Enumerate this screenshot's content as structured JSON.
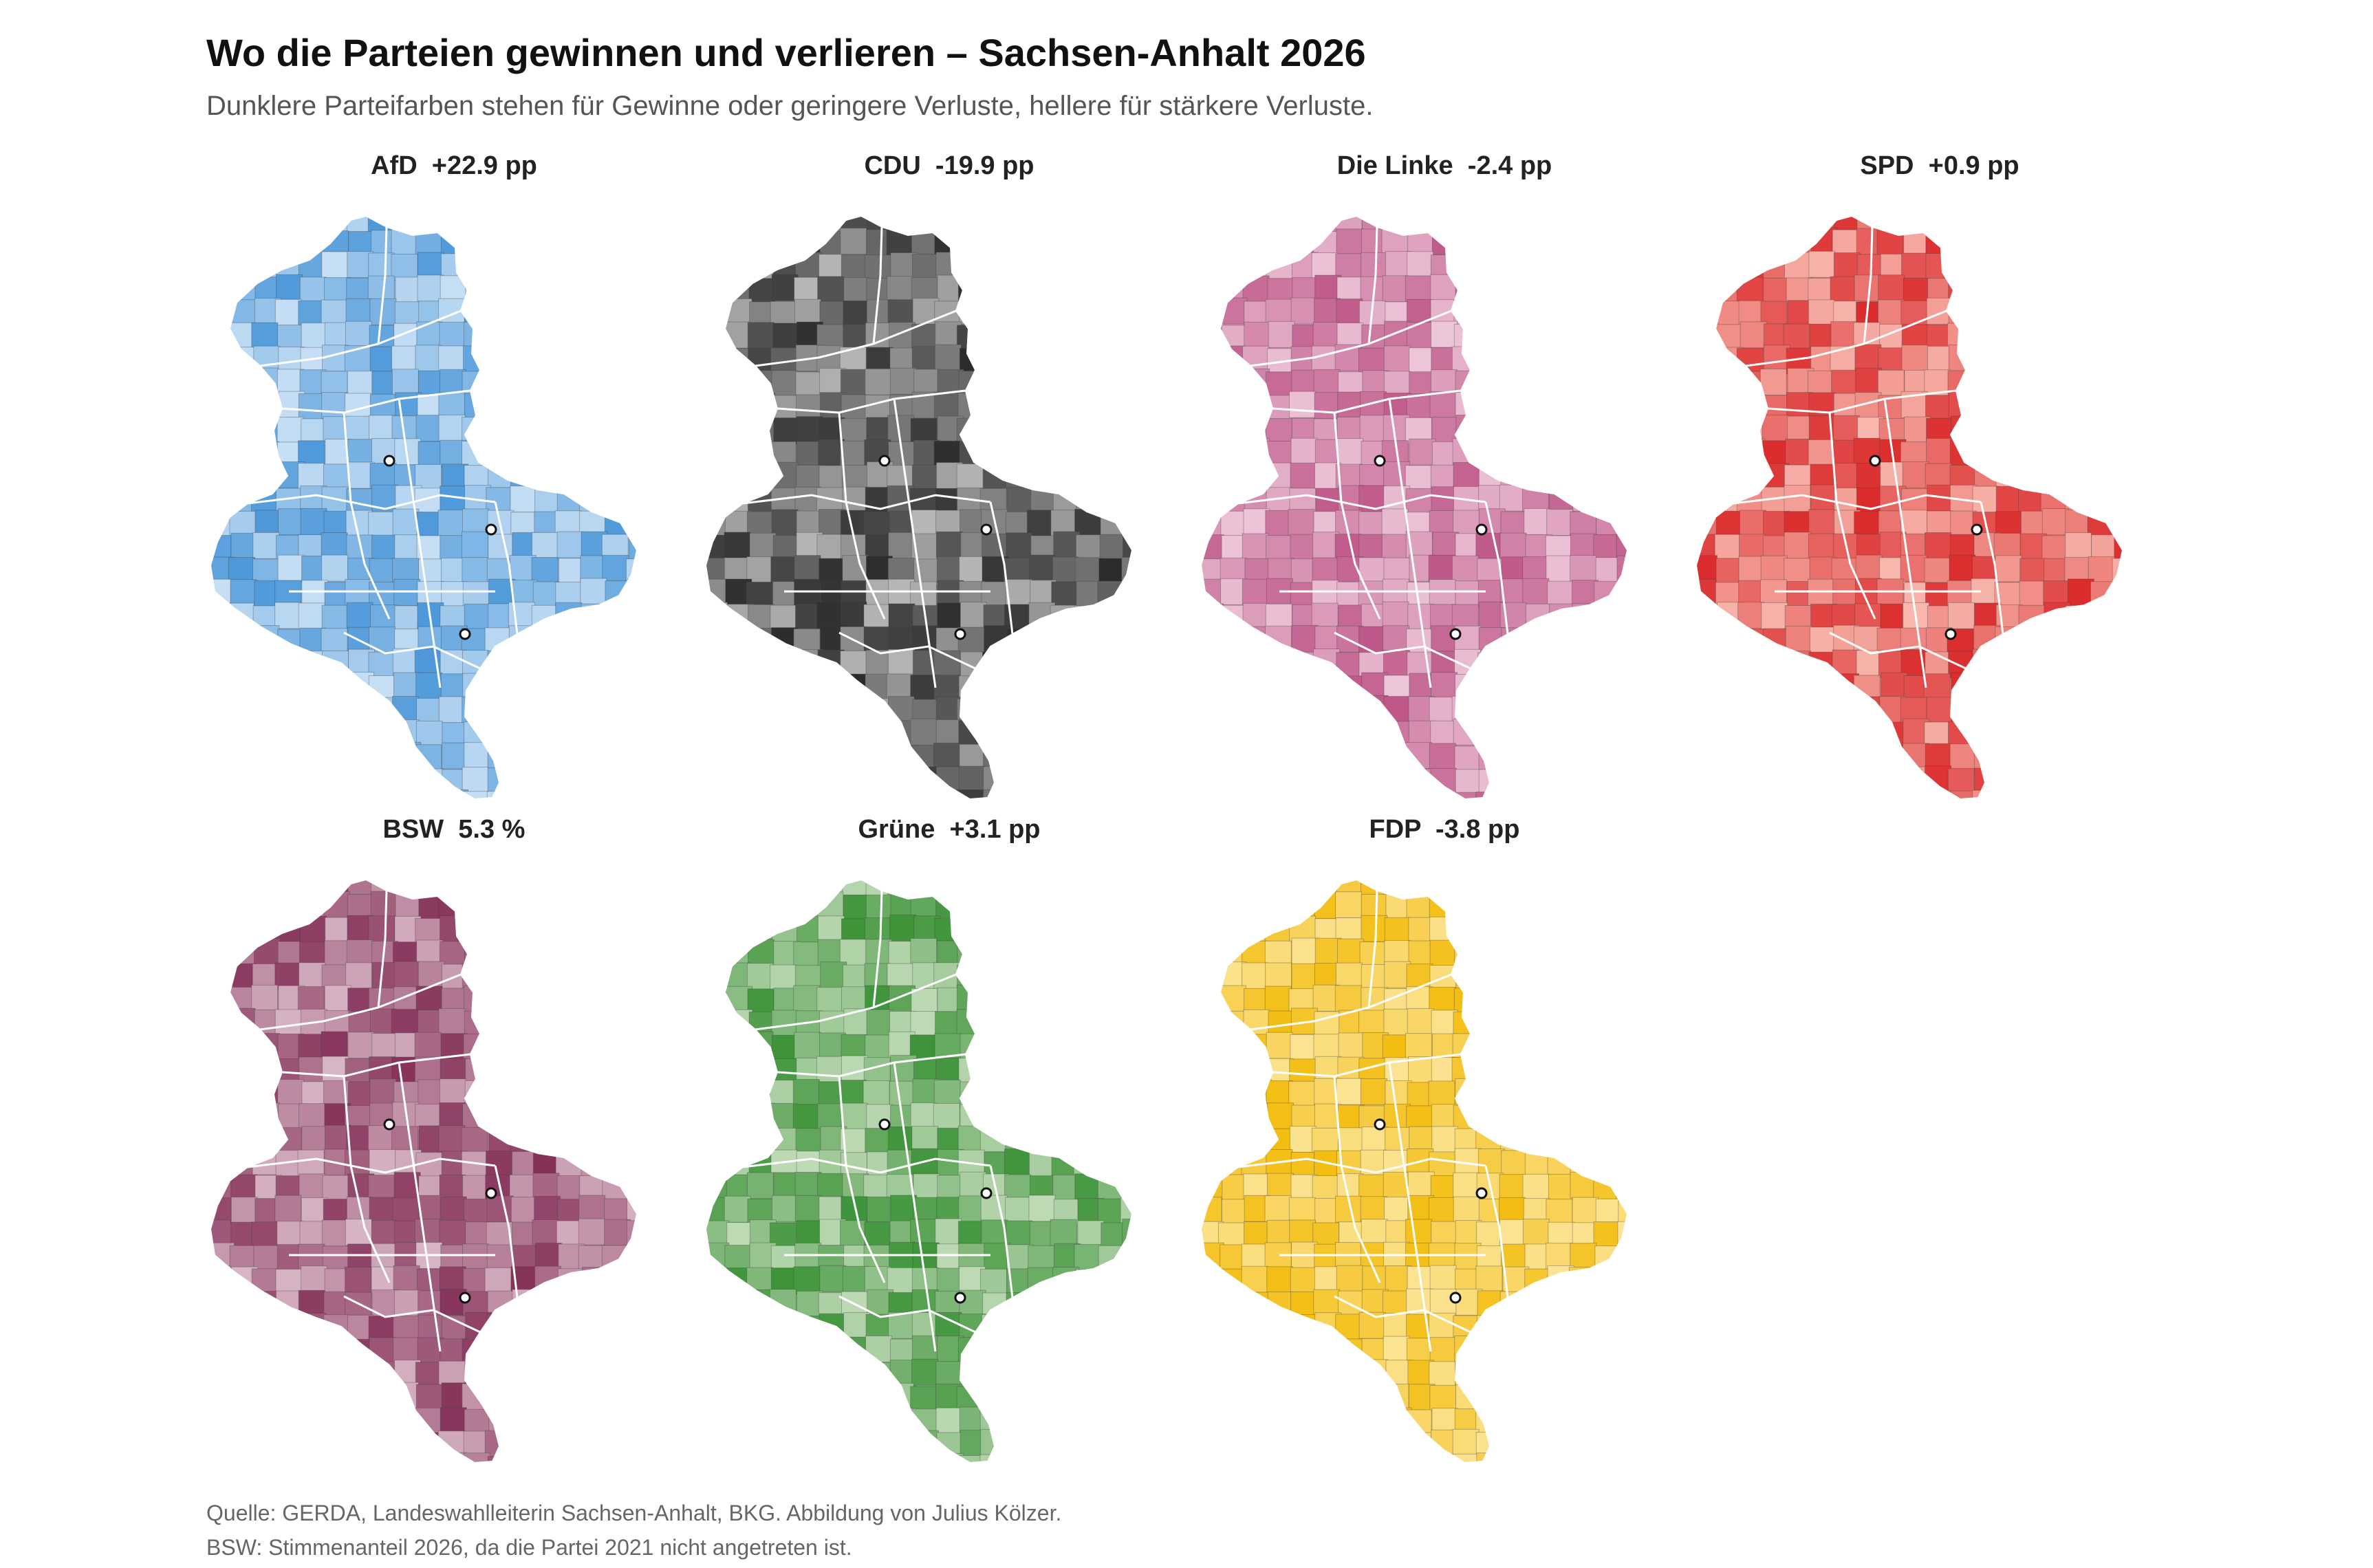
{
  "header": {
    "title": "Wo die Parteien gewinnen und verlieren – Sachsen-Anhalt 2026",
    "subtitle": "Dunklere Parteifarben stehen für Gewinne oder geringere Verluste, hellere für stärkere Verluste."
  },
  "panels": [
    {
      "label": "AfD",
      "value": "+22.9 pp",
      "color_dark": "#3d8fd6",
      "color_light": "#d6e8f8"
    },
    {
      "label": "CDU",
      "value": "-19.9 pp",
      "color_dark": "#1a1a1a",
      "color_light": "#c8c8c8"
    },
    {
      "label": "Die Linke",
      "value": "-2.4 pp",
      "color_dark": "#b8487e",
      "color_light": "#f3d3e2"
    },
    {
      "label": "SPD",
      "value": "+0.9 pp",
      "color_dark": "#d7191c",
      "color_light": "#fcc9bd"
    },
    {
      "label": "BSW",
      "value": "5.3 %",
      "color_dark": "#7a1f4a",
      "color_light": "#e2c6d3"
    },
    {
      "label": "Grüne",
      "value": "+3.1 pp",
      "color_dark": "#2e8b2a",
      "color_light": "#cfe3c6"
    },
    {
      "label": "FDP",
      "value": "-3.8 pp",
      "color_dark": "#f2b800",
      "color_light": "#fde9a6"
    }
  ],
  "footer": {
    "source": "Quelle: GERDA, Landeswahlleiterin Sachsen-Anhalt, BKG. Abbildung von Julius Kölzer.",
    "note": "BSW: Stimmenanteil 2026, da die Partei 2021 nicht angetreten ist."
  }
}
